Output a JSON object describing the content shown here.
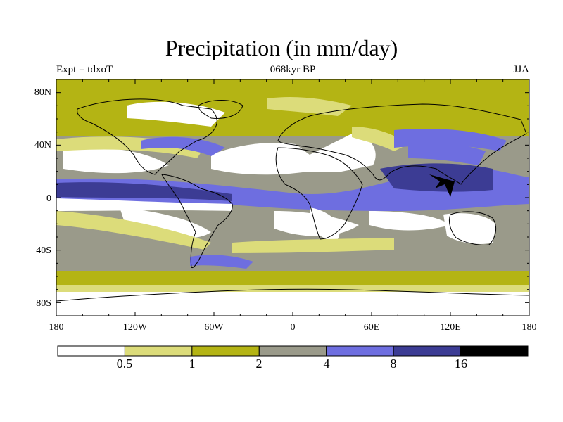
{
  "title": "Precipitation (in mm/day)",
  "subtitle_left": "Expt = tdxoT",
  "subtitle_center": "068kyr BP",
  "subtitle_right": "JJA",
  "lat_labels": [
    "80N",
    "40N",
    "0",
    "40S",
    "80S"
  ],
  "lon_labels": [
    "180",
    "120W",
    "60W",
    "0",
    "60E",
    "120E",
    "180"
  ],
  "colorbar": {
    "colors": [
      "#ffffff",
      "#dcdc7a",
      "#b4b414",
      "#9a9a8a",
      "#6e6ee0",
      "#3c3c94",
      "#000000"
    ],
    "labels": [
      "0.5",
      "1",
      "2",
      "4",
      "8",
      "16"
    ]
  },
  "levels": {
    "lt_0_5": "#ffffff",
    "0_5_to_1": "#dcdc7a",
    "1_to_2": "#b4b414",
    "2_to_4": "#9a9a8a",
    "4_to_8": "#6e6ee0",
    "8_to_16": "#3c3c94",
    "gt_16": "#000000"
  }
}
